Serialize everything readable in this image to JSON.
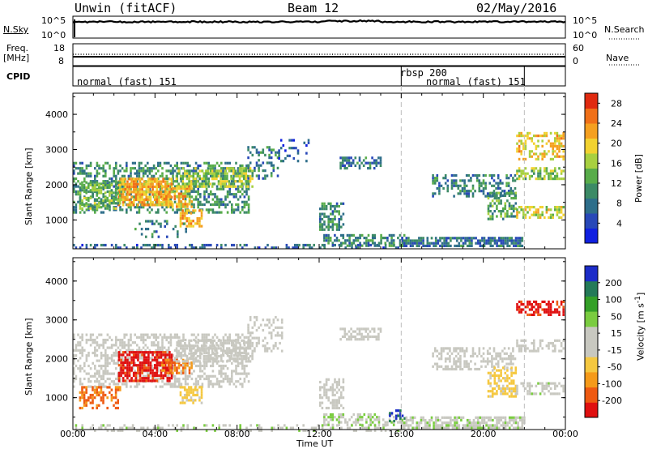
{
  "header": {
    "station": "Unwin (fitACF)",
    "beam": "Beam 12",
    "date": "02/May/2016"
  },
  "strip_labels": {
    "nsky": "N.Sky",
    "nsky_ticks": [
      "10^5",
      "10^0"
    ],
    "nsearch": "N.Search",
    "nsearch_ticks": [
      "10^5",
      "10^0"
    ],
    "freq": "Freq.",
    "freq_unit": "[MHz]",
    "freq_ticks": [
      "18",
      "8"
    ],
    "nave": "Nave",
    "nave_ticks": [
      "60",
      "0"
    ],
    "cpid": "CPID"
  },
  "cpid_segments": [
    {
      "label": "normal (fast) 151",
      "start_h": 0,
      "end_h": 16
    },
    {
      "label": "rbsp 200",
      "start_h": 16,
      "end_h": 22
    },
    {
      "label": "normal (fast) 151",
      "start_h": 22,
      "end_h": 24
    }
  ],
  "cpid_labels": [
    "normal (fast) 151",
    "rbsp 200",
    "normal (fast) 151"
  ],
  "x_axis": {
    "label": "Time UT",
    "ticks": [
      "00:00",
      "04:00",
      "08:00",
      "12:00",
      "16:00",
      "20:00",
      "00:00"
    ]
  },
  "colors": {
    "power": [
      "#1020e0",
      "#2848b8",
      "#2e6e8a",
      "#3c8a66",
      "#58ac4a",
      "#a8d040",
      "#f2d230",
      "#f5a020",
      "#f07018",
      "#e02a10"
    ],
    "velocity": [
      "#e01010",
      "#ee5a12",
      "#f59a1a",
      "#f5c840",
      "#c8c8c0",
      "#c8c8c0",
      "#7acc40",
      "#34a028",
      "#247a58",
      "#1c2cc8"
    ]
  },
  "chart_data": [
    {
      "type": "heatmap",
      "title": "",
      "quantity": "Power",
      "xlabel": "",
      "ylabel": "Slant Range [km]",
      "xlim": [
        0,
        24
      ],
      "ylim": [
        180,
        4600
      ],
      "yticks": [
        "1000",
        "2000",
        "3000",
        "4000"
      ],
      "colorbar": {
        "label": "Power [dB]",
        "ticks": [
          "4",
          "8",
          "12",
          "16",
          "20",
          "24",
          "28"
        ],
        "range": [
          0,
          30
        ]
      },
      "regions": [
        {
          "t0": 0.0,
          "t1": 8.6,
          "r0": 1250,
          "r1": 2650,
          "value": 10,
          "density": 0.45
        },
        {
          "t0": 2.2,
          "t1": 4.8,
          "r0": 1400,
          "r1": 2200,
          "value": 22,
          "density": 0.8
        },
        {
          "t0": 0.3,
          "t1": 2.3,
          "r0": 1300,
          "r1": 2100,
          "value": 14,
          "density": 0.55
        },
        {
          "t0": 4.3,
          "t1": 5.8,
          "r0": 1400,
          "r1": 2000,
          "value": 21,
          "density": 0.6
        },
        {
          "t0": 5.0,
          "t1": 8.7,
          "r0": 1950,
          "r1": 2500,
          "value": 16,
          "density": 0.6
        },
        {
          "t0": 8.5,
          "t1": 10.0,
          "r0": 2200,
          "r1": 3100,
          "value": 9,
          "density": 0.35
        },
        {
          "t0": 10.0,
          "t1": 11.5,
          "r0": 2700,
          "r1": 3300,
          "value": 5,
          "density": 0.25
        },
        {
          "t0": 5.2,
          "t1": 6.3,
          "r0": 850,
          "r1": 1300,
          "value": 22,
          "density": 0.7
        },
        {
          "t0": 3.0,
          "t1": 5.5,
          "r0": 500,
          "r1": 1000,
          "value": 8,
          "density": 0.2
        },
        {
          "t0": 12.0,
          "t1": 13.2,
          "r0": 700,
          "r1": 1500,
          "value": 10,
          "density": 0.55
        },
        {
          "t0": 13.0,
          "t1": 15.0,
          "r0": 2500,
          "r1": 2800,
          "value": 8,
          "density": 0.5
        },
        {
          "t0": 12.2,
          "t1": 16.2,
          "r0": 300,
          "r1": 600,
          "value": 10,
          "density": 0.55
        },
        {
          "t0": 16.0,
          "t1": 22.0,
          "r0": 250,
          "r1": 520,
          "value": 8,
          "density": 0.75
        },
        {
          "t0": 17.5,
          "t1": 21.6,
          "r0": 1700,
          "r1": 2300,
          "value": 9,
          "density": 0.4
        },
        {
          "t0": 20.2,
          "t1": 21.6,
          "r0": 1000,
          "r1": 1800,
          "value": 12,
          "density": 0.55
        },
        {
          "t0": 21.6,
          "t1": 23.9,
          "r0": 1100,
          "r1": 1400,
          "value": 18,
          "density": 0.55
        },
        {
          "t0": 21.6,
          "t1": 23.9,
          "r0": 2200,
          "r1": 2500,
          "value": 15,
          "density": 0.6
        },
        {
          "t0": 21.6,
          "t1": 23.9,
          "r0": 2700,
          "r1": 3500,
          "value": 20,
          "density": 0.45
        },
        {
          "t0": 0.0,
          "t1": 16.0,
          "r0": 180,
          "r1": 320,
          "value": 7,
          "density": 0.35
        }
      ]
    },
    {
      "type": "heatmap",
      "title": "",
      "quantity": "Velocity",
      "xlabel": "Time UT",
      "ylabel": "Slant Range [km]",
      "xlim": [
        0,
        24
      ],
      "ylim": [
        180,
        4600
      ],
      "yticks": [
        "1000",
        "2000",
        "3000",
        "4000"
      ],
      "colorbar": {
        "label": "Velocity [m s^-1]",
        "ticks": [
          "200",
          "100",
          "50",
          "15",
          "-15",
          "-50",
          "-100",
          "-200"
        ],
        "range": [
          -250,
          250
        ]
      },
      "regions": [
        {
          "t0": 0.0,
          "t1": 8.6,
          "r0": 1250,
          "r1": 2650,
          "value": 0,
          "density": 0.45
        },
        {
          "t0": 2.2,
          "t1": 4.8,
          "r0": 1400,
          "r1": 2200,
          "value": -220,
          "density": 0.75
        },
        {
          "t0": 0.3,
          "t1": 2.3,
          "r0": 700,
          "r1": 1300,
          "value": -160,
          "density": 0.45
        },
        {
          "t0": 4.3,
          "t1": 5.8,
          "r0": 1600,
          "r1": 2000,
          "value": -150,
          "density": 0.5
        },
        {
          "t0": 5.0,
          "t1": 8.7,
          "r0": 1950,
          "r1": 2500,
          "value": 0,
          "density": 0.6
        },
        {
          "t0": 8.5,
          "t1": 10.2,
          "r0": 2200,
          "r1": 3100,
          "value": 0,
          "density": 0.35
        },
        {
          "t0": 5.2,
          "t1": 6.3,
          "r0": 850,
          "r1": 1300,
          "value": -70,
          "density": 0.65
        },
        {
          "t0": 12.0,
          "t1": 13.2,
          "r0": 700,
          "r1": 1500,
          "value": 0,
          "density": 0.55
        },
        {
          "t0": 13.0,
          "t1": 15.0,
          "r0": 2500,
          "r1": 2800,
          "value": 0,
          "density": 0.5
        },
        {
          "t0": 12.2,
          "t1": 16.2,
          "r0": 300,
          "r1": 600,
          "value": 40,
          "density": 0.5
        },
        {
          "t0": 15.4,
          "t1": 16.2,
          "r0": 400,
          "r1": 700,
          "value": 210,
          "density": 0.4
        },
        {
          "t0": 16.0,
          "t1": 22.0,
          "r0": 250,
          "r1": 520,
          "value": 30,
          "density": 0.7
        },
        {
          "t0": 17.5,
          "t1": 21.6,
          "r0": 1700,
          "r1": 2300,
          "value": -20,
          "density": 0.4
        },
        {
          "t0": 20.2,
          "t1": 21.6,
          "r0": 1000,
          "r1": 1800,
          "value": -70,
          "density": 0.5
        },
        {
          "t0": 21.6,
          "t1": 23.9,
          "r0": 1100,
          "r1": 1400,
          "value": 30,
          "density": 0.5
        },
        {
          "t0": 21.6,
          "t1": 23.9,
          "r0": 2200,
          "r1": 2500,
          "value": 0,
          "density": 0.55
        },
        {
          "t0": 21.6,
          "t1": 23.9,
          "r0": 3100,
          "r1": 3500,
          "value": -220,
          "density": 0.6
        },
        {
          "t0": 0.0,
          "t1": 16.0,
          "r0": 180,
          "r1": 320,
          "value": 30,
          "density": 0.3
        }
      ]
    }
  ]
}
